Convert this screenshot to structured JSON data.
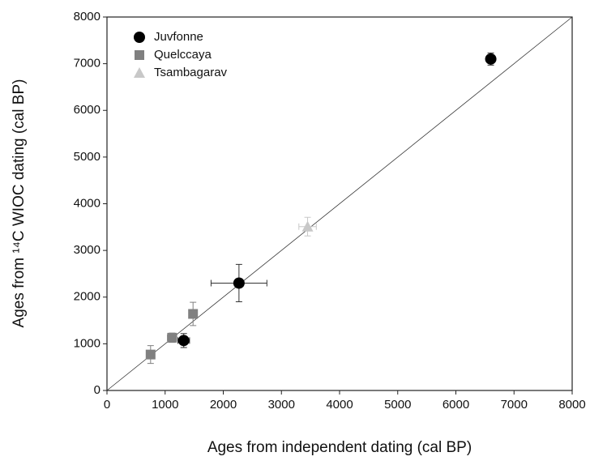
{
  "chart_data": {
    "type": "scatter",
    "x_label": "Ages from independent dating (cal BP)",
    "y_label": "Ages from ¹⁴C WIOC dating (cal BP)",
    "xlim": [
      0,
      8000
    ],
    "ylim": [
      0,
      8000
    ],
    "xticks": [
      0,
      1000,
      2000,
      3000,
      4000,
      5000,
      6000,
      7000,
      8000
    ],
    "yticks": [
      0,
      1000,
      2000,
      3000,
      4000,
      5000,
      6000,
      7000,
      8000
    ],
    "legend": "upper left",
    "series": [
      {
        "name": "Juvfonne",
        "color": "#000000",
        "marker": "circle",
        "x": [
          6600,
          2270,
          1320
        ],
        "values": [
          7100,
          2300,
          1070
        ],
        "xerr": [
          null,
          480,
          100
        ],
        "yerr": [
          130,
          400,
          150
        ]
      },
      {
        "name": "Quelccaya",
        "color": "#808080",
        "marker": "square",
        "x": [
          750,
          1120,
          1480
        ],
        "values": [
          770,
          1130,
          1640
        ],
        "xerr": [
          60,
          80,
          60
        ],
        "yerr": [
          190,
          100,
          250
        ]
      },
      {
        "name": "Tsambagarav",
        "color": "#c8c8c8",
        "marker": "triangle",
        "x": [
          3450
        ],
        "values": [
          3510
        ],
        "xerr": [
          150
        ],
        "yerr": [
          200
        ]
      }
    ]
  }
}
